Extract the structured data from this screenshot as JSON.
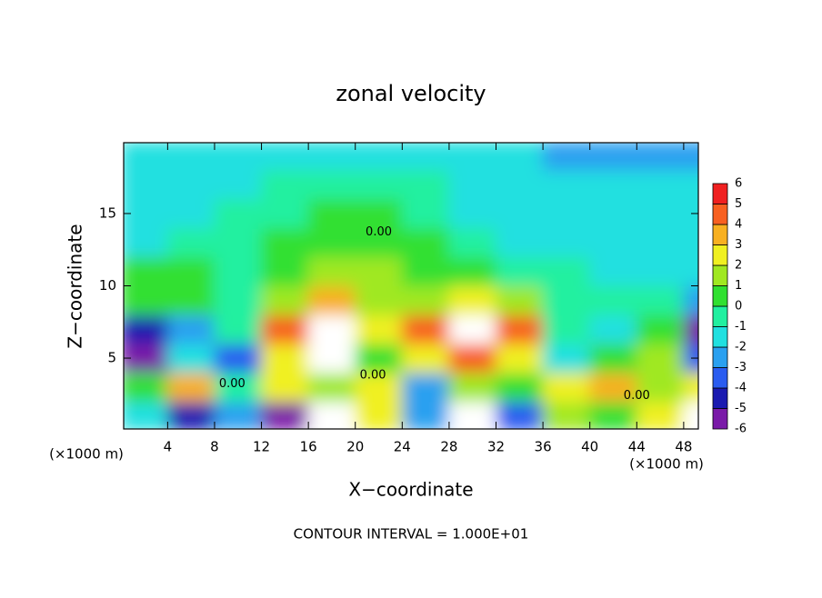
{
  "chart_data": {
    "type": "heatmap",
    "title": "zonal velocity",
    "xlabel": "X−coordinate",
    "ylabel": "Z−coordinate",
    "x_unit_left": "(×1000 m)",
    "x_unit_right": "(×1000 m)",
    "footnote": "CONTOUR INTERVAL = 1.000E+01",
    "xlim": [
      0.25,
      49.25
    ],
    "ylim": [
      0.1,
      19.9
    ],
    "xticks": [
      4,
      8,
      12,
      16,
      20,
      24,
      28,
      32,
      36,
      40,
      44,
      48
    ],
    "yticks": [
      5,
      10,
      15
    ],
    "x": [
      2,
      6,
      10,
      14,
      18,
      22,
      26,
      30,
      34,
      38,
      42,
      46,
      50
    ],
    "y": [
      1,
      3,
      5,
      7,
      9,
      11,
      13,
      15,
      17,
      19
    ],
    "z": [
      [
        -1,
        -4,
        -2,
        -5,
        8,
        3,
        -2,
        8,
        -3,
        2,
        1,
        3,
        8
      ],
      [
        1,
        4,
        0,
        3,
        2,
        3,
        -2,
        2,
        1,
        3,
        4,
        2,
        3
      ],
      [
        -5,
        -1,
        -3,
        3,
        8,
        1,
        3,
        5,
        3,
        -1,
        1,
        2,
        -3
      ],
      [
        -4,
        -2,
        0,
        5,
        8,
        3,
        5,
        8,
        5,
        0,
        -1,
        1,
        -5
      ],
      [
        1,
        0.5,
        0,
        2,
        4,
        2,
        1.5,
        3,
        2,
        0,
        -0.5,
        -0.5,
        -2
      ],
      [
        0.5,
        0.5,
        0,
        1,
        2,
        1.5,
        1,
        0.5,
        0,
        -0.5,
        -1,
        -1,
        -1
      ],
      [
        -1,
        -0.5,
        0,
        0.5,
        1,
        1,
        0.5,
        -0.5,
        -1.5,
        -1,
        -1.5,
        -1.5,
        -1.5
      ],
      [
        -1,
        -1,
        -0.5,
        0,
        0.5,
        0.5,
        0,
        -1,
        -1.5,
        -1.5,
        -1.5,
        -1.5,
        -1.5
      ],
      [
        -1,
        -1,
        -1,
        -0.5,
        -0.5,
        -0.5,
        -0.5,
        -1,
        -1.5,
        -1.5,
        -1.5,
        -1.5,
        -1.5
      ],
      [
        -1.5,
        -1.5,
        -1.5,
        -1.5,
        -1.5,
        -1.5,
        -1.5,
        -1.5,
        -1.5,
        -2,
        -2,
        -2,
        -2
      ]
    ],
    "colorbar_ticks": [
      -6,
      -5,
      -4,
      -3,
      -2,
      -1,
      0,
      1,
      2,
      3,
      4,
      5,
      6
    ],
    "colorbar_colors": [
      "#7a1aa8",
      "#1a1ab0",
      "#2a5cf0",
      "#2aa0f0",
      "#20e0e0",
      "#20f0a0",
      "#30e030",
      "#a0e820",
      "#f0f020",
      "#f8b020",
      "#f86020",
      "#f02020",
      "#f8a0a0"
    ],
    "over_color": "#ffffff",
    "contour_labels": [
      {
        "x": 22,
        "z": 13.7,
        "label": "0.00"
      },
      {
        "x": 9.5,
        "z": 3.2,
        "label": "0.00"
      },
      {
        "x": 21.5,
        "z": 3.8,
        "label": "0.00"
      },
      {
        "x": 44,
        "z": 2.4,
        "label": "0.00"
      }
    ]
  }
}
